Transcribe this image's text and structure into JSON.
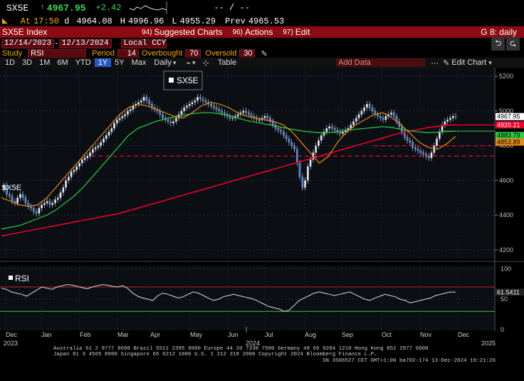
{
  "ticker": {
    "symbol": "SX5E",
    "last": "4967.95",
    "change": "+2.42",
    "spark_line": "",
    "dash": "-- / --",
    "at_label": "At",
    "time": "17:50",
    "d_label": "d",
    "open": "4964.08",
    "h_label": "H",
    "high": "4996.96",
    "l_label": "L",
    "low": "4955.29",
    "prev_label": "Prev",
    "prev": "4965.53"
  },
  "menu": {
    "title": "SX5E Index",
    "suggested": "Suggested Charts",
    "suggested_num": "94)",
    "actions": "Actions",
    "actions_num": "96)",
    "edit": "Edit",
    "edit_num": "97)",
    "page": "G 8: daily"
  },
  "dates": {
    "start": "12/14/2023",
    "end": "12/13/2024",
    "currency": "Local CCY"
  },
  "study": {
    "label": "Study",
    "value": "RSI",
    "period_label": "Period",
    "period": "14",
    "overbought_label": "Overbought",
    "overbought": "70",
    "oversold_label": "Oversold",
    "oversold": "30"
  },
  "toolbar": {
    "ranges": [
      "1D",
      "3D",
      "1M",
      "6M",
      "YTD",
      "1Y",
      "5Y",
      "Max"
    ],
    "selected_range": "1Y",
    "frequency": "Daily",
    "table_label": "Table",
    "add_data": "Add Data",
    "edit_chart": "Edit Chart"
  },
  "chart_data": {
    "type": "line",
    "main_label": "SX5E",
    "rsi_label": "RSI",
    "price_axis": [
      "5200",
      "5000",
      "4800",
      "4600",
      "4400",
      "4200"
    ],
    "price_range": [
      4150,
      5250
    ],
    "rsi_axis": [
      "100",
      "50",
      "0"
    ],
    "rsi_range": [
      0,
      105
    ],
    "x_labels": [
      "Dec",
      "Jan",
      "Feb",
      "Mar",
      "Apr",
      "May",
      "Jun",
      "Jul",
      "Aug",
      "Sep",
      "Oct",
      "Nov",
      "Dec"
    ],
    "year_labels": [
      "2023",
      "2024",
      "2025"
    ],
    "flags": [
      {
        "text": "4967.95",
        "color": "#ffffff",
        "bg": "#ffffff",
        "fg": "#000000",
        "value": 4967.95
      },
      {
        "text": "4920.21",
        "color": "#e8002a",
        "bg": "#e8002a",
        "fg": "#ffffff",
        "value": 4920.21
      },
      {
        "text": "4883.79",
        "color": "#2ecc40",
        "bg": "#2ecc40",
        "fg": "#000000",
        "value": 4883.79
      },
      {
        "text": "4853.89",
        "color": "#e8891a",
        "bg": "#e8891a",
        "fg": "#000000",
        "value": 4853.89
      }
    ],
    "rsi_flag": "61.5411",
    "rsi_last": 61.54,
    "hlines": [
      {
        "value": 4800,
        "color": "#e8002a",
        "x0": 0.755,
        "x1": 1.0
      },
      {
        "value": 4740,
        "color": "#e8002a",
        "x0": 0.17,
        "x1": 1.0
      }
    ],
    "close_path": [
      4550,
      4570,
      4520,
      4510,
      4480,
      4470,
      4500,
      4520,
      4500,
      4470,
      4450,
      4440,
      4420,
      4410,
      4440,
      4460,
      4470,
      4480,
      4460,
      4470,
      4490,
      4500,
      4530,
      4560,
      4600,
      4620,
      4650,
      4660,
      4680,
      4700,
      4720,
      4730,
      4740,
      4760,
      4780,
      4790,
      4800,
      4820,
      4840,
      4860,
      4880,
      4900,
      4930,
      4950,
      4960,
      4970,
      4980,
      5000,
      5010,
      5030,
      5040,
      5050,
      5060,
      5080,
      5060,
      5040,
      5020,
      5010,
      5000,
      4980,
      4960,
      4950,
      4940,
      4930,
      4940,
      4960,
      4980,
      5000,
      5020,
      5030,
      5040,
      5050,
      5060,
      5080,
      5070,
      5060,
      5050,
      5040,
      5030,
      5020,
      5010,
      5000,
      4990,
      4980,
      4970,
      4960,
      4960,
      4970,
      4980,
      4990,
      5000,
      4990,
      4980,
      4970,
      4960,
      4950,
      4950,
      4960,
      4970,
      4960,
      4940,
      4920,
      4900,
      4890,
      4880,
      4860,
      4840,
      4820,
      4800,
      4780,
      4700,
      4620,
      4560,
      4600,
      4680,
      4720,
      4760,
      4800,
      4830,
      4860,
      4880,
      4900,
      4910,
      4900,
      4890,
      4880,
      4870,
      4880,
      4890,
      4900,
      4920,
      4940,
      4960,
      4980,
      5000,
      5020,
      5040,
      5020,
      5000,
      4980,
      4970,
      4960,
      4950,
      4970,
      4980,
      4990,
      4970,
      4940,
      4910,
      4880,
      4850,
      4830,
      4820,
      4790,
      4780,
      4770,
      4760,
      4750,
      4740,
      4730,
      4760,
      4800,
      4840,
      4880,
      4920,
      4940,
      4950,
      4960,
      4970,
      4968
    ],
    "ma_red": [
      4280,
      4290,
      4300,
      4310,
      4320,
      4330,
      4340,
      4350,
      4360,
      4370,
      4380,
      4390,
      4400,
      4410,
      4425,
      4440,
      4455,
      4470,
      4485,
      4500,
      4515,
      4530,
      4545,
      4560,
      4575,
      4590,
      4605,
      4620,
      4635,
      4650,
      4665,
      4680,
      4695,
      4710,
      4725,
      4740,
      4755,
      4770,
      4785,
      4800,
      4815,
      4830,
      4845,
      4860,
      4875,
      4885,
      4895,
      4905,
      4912,
      4918,
      4920
    ],
    "ma_green": [
      4320,
      4330,
      4340,
      4360,
      4380,
      4400,
      4430,
      4470,
      4510,
      4560,
      4620,
      4680,
      4740,
      4800,
      4860,
      4900,
      4920,
      4940,
      4955,
      4965,
      4975,
      4985,
      4990,
      4990,
      4985,
      4975,
      4960,
      4945,
      4935,
      4925,
      4915,
      4905,
      4895,
      4885,
      4880,
      4875,
      4875,
      4880,
      4890,
      4895,
      4900,
      4905,
      4910,
      4905,
      4895,
      4885,
      4880,
      4875,
      4878,
      4882,
      4884
    ],
    "ma_orange": [
      4500,
      4480,
      4460,
      4450,
      4460,
      4500,
      4560,
      4620,
      4680,
      4740,
      4800,
      4860,
      4920,
      4980,
      5020,
      5040,
      5030,
      5010,
      4990,
      4970,
      4960,
      4990,
      5030,
      5050,
      5040,
      5020,
      4990,
      4970,
      4960,
      4950,
      4940,
      4920,
      4880,
      4820,
      4760,
      4700,
      4740,
      4820,
      4880,
      4920,
      4950,
      4980,
      4990,
      4960,
      4920,
      4870,
      4820,
      4790,
      4780,
      4810,
      4854
    ],
    "rsi_values": [
      68,
      66,
      62,
      60,
      58,
      55,
      60,
      65,
      70,
      68,
      66,
      70,
      72,
      74,
      73,
      71,
      69,
      67,
      70,
      72,
      74,
      73,
      71,
      70,
      72,
      68,
      60,
      55,
      52,
      50,
      48,
      56,
      60,
      58,
      55,
      52,
      54,
      58,
      62,
      60,
      56,
      52,
      48,
      50,
      54,
      56,
      58,
      56,
      54,
      52,
      50,
      46,
      42,
      38,
      36,
      34,
      30,
      32,
      40,
      48,
      52,
      56,
      60,
      62,
      60,
      58,
      56,
      58,
      60,
      62,
      58,
      54,
      50,
      48,
      52,
      55,
      58,
      56,
      54,
      50,
      48,
      44,
      46,
      48,
      50,
      52,
      56,
      58,
      60,
      62,
      61.5
    ]
  },
  "footer": {
    "line1": "Australia 61 2 9777 8600 Brazil 5511 2395 9000 Europe 44 20 7330 7500 Germany 49 69 9204 1210 Hong Kong 852 2977 6000",
    "line2": "Japan 81 3 4565 8900       Singapore 65 6212 1000       U.S. 1 212 318 2000             Copyright 2024 Bloomberg Finance L.P.",
    "line3": "SN 3506527 CET  GMT+1:00 ba702-174 13-Dec-2024 19:21:26"
  }
}
